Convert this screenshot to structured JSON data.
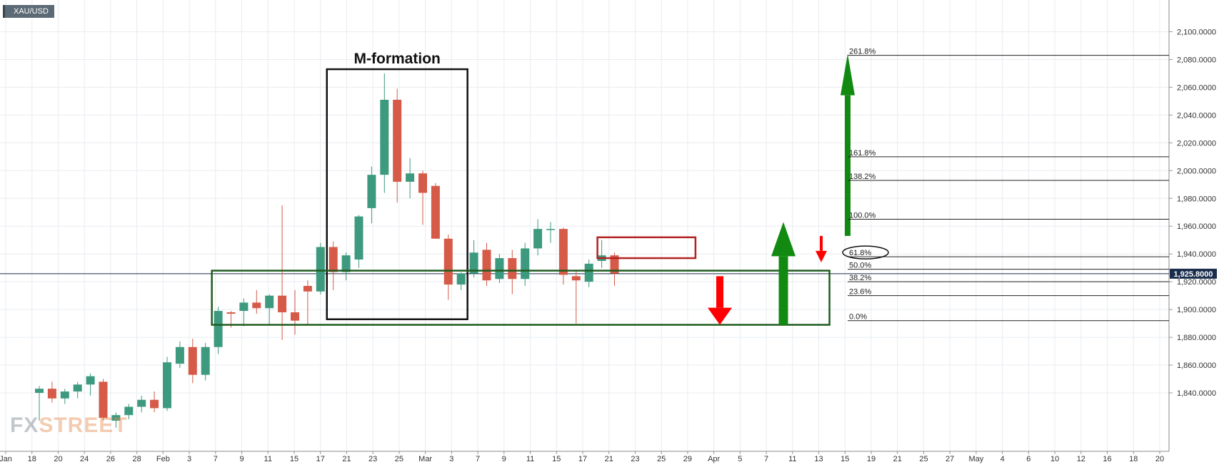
{
  "symbol": "XAU/USD",
  "watermark": {
    "part1": "FX",
    "part2": "STREET"
  },
  "colors": {
    "up": "#3d9a7f",
    "down": "#d65a48",
    "grid": "#e8ecf0",
    "green_annotation": "#128a12",
    "red_annotation": "#ff0000",
    "box_green": "#1f5c1f",
    "box_red": "#b22222",
    "price_tag": "#1a2d4d"
  },
  "chart_data": {
    "type": "candlestick",
    "title": "M-formation",
    "ylim": [
      1820,
      2110
    ],
    "y_ticks": [
      1840,
      1860,
      1880,
      1900,
      1920,
      1940,
      1960,
      1980,
      2000,
      2020,
      2040,
      2060,
      2080,
      2100
    ],
    "y_tick_labels": [
      "1,840.0000",
      "1,860.0000",
      "1,880.0000",
      "1,900.0000",
      "1,920.0000",
      "1,940.0000",
      "1,960.0000",
      "1,980.0000",
      "2,000.0000",
      "2,020.0000",
      "2,040.0000",
      "2,060.0000",
      "2,080.0000",
      "2,100.0000"
    ],
    "x_labels": [
      "Jan",
      "18",
      "20",
      "24",
      "26",
      "28",
      "Feb",
      "3",
      "7",
      "9",
      "11",
      "15",
      "17",
      "21",
      "23",
      "25",
      "Mar",
      "3",
      "7",
      "9",
      "11",
      "15",
      "17",
      "21",
      "23",
      "25",
      "29",
      "Apr",
      "5",
      "7",
      "11",
      "13",
      "15",
      "19",
      "21",
      "25",
      "27",
      "May",
      "4",
      "6",
      "10",
      "12",
      "16",
      "18",
      "20"
    ],
    "current_price": 1925.8,
    "current_price_label": "1,925.8000",
    "candles": [
      {
        "open": 1840,
        "high": 1845,
        "low": 1820,
        "close": 1843
      },
      {
        "open": 1843,
        "high": 1848,
        "low": 1833,
        "close": 1836
      },
      {
        "open": 1836,
        "high": 1843,
        "low": 1832,
        "close": 1841
      },
      {
        "open": 1841,
        "high": 1848,
        "low": 1836,
        "close": 1846
      },
      {
        "open": 1846,
        "high": 1854,
        "low": 1838,
        "close": 1852
      },
      {
        "open": 1848,
        "high": 1850,
        "low": 1820,
        "close": 1822
      },
      {
        "open": 1820,
        "high": 1826,
        "low": 1815,
        "close": 1824
      },
      {
        "open": 1824,
        "high": 1832,
        "low": 1821,
        "close": 1830
      },
      {
        "open": 1830,
        "high": 1838,
        "low": 1826,
        "close": 1835
      },
      {
        "open": 1835,
        "high": 1841,
        "low": 1826,
        "close": 1829
      },
      {
        "open": 1829,
        "high": 1866,
        "low": 1827,
        "close": 1862
      },
      {
        "open": 1861,
        "high": 1877,
        "low": 1858,
        "close": 1873
      },
      {
        "open": 1873,
        "high": 1879,
        "low": 1847,
        "close": 1853
      },
      {
        "open": 1853,
        "high": 1876,
        "low": 1849,
        "close": 1873
      },
      {
        "open": 1873,
        "high": 1902,
        "low": 1868,
        "close": 1899
      },
      {
        "open": 1898,
        "high": 1899,
        "low": 1887,
        "close": 1897
      },
      {
        "open": 1899,
        "high": 1908,
        "low": 1888,
        "close": 1905
      },
      {
        "open": 1905,
        "high": 1914,
        "low": 1897,
        "close": 1901
      },
      {
        "open": 1901,
        "high": 1911,
        "low": 1889,
        "close": 1910
      },
      {
        "open": 1910,
        "high": 1975,
        "low": 1878,
        "close": 1898
      },
      {
        "open": 1898,
        "high": 1914,
        "low": 1882,
        "close": 1892
      },
      {
        "open": 1917,
        "high": 1921,
        "low": 1889,
        "close": 1913
      },
      {
        "open": 1913,
        "high": 1948,
        "low": 1911,
        "close": 1945
      },
      {
        "open": 1945,
        "high": 1949,
        "low": 1914,
        "close": 1927
      },
      {
        "open": 1927,
        "high": 1941,
        "low": 1921,
        "close": 1939
      },
      {
        "open": 1936,
        "high": 1968,
        "low": 1930,
        "close": 1967
      },
      {
        "open": 1973,
        "high": 2003,
        "low": 1962,
        "close": 1997
      },
      {
        "open": 1997,
        "high": 2070,
        "low": 1984,
        "close": 2051
      },
      {
        "open": 2051,
        "high": 2059,
        "low": 1977,
        "close": 1992
      },
      {
        "open": 1992,
        "high": 2009,
        "low": 1980,
        "close": 1998
      },
      {
        "open": 1998,
        "high": 2000,
        "low": 1961,
        "close": 1984
      },
      {
        "open": 1989,
        "high": 1991,
        "low": 1951,
        "close": 1951
      },
      {
        "open": 1951,
        "high": 1954,
        "low": 1907,
        "close": 1918
      },
      {
        "open": 1918,
        "high": 1927,
        "low": 1914,
        "close": 1926
      },
      {
        "open": 1926,
        "high": 1950,
        "low": 1923,
        "close": 1941
      },
      {
        "open": 1943,
        "high": 1948,
        "low": 1917,
        "close": 1921
      },
      {
        "open": 1922,
        "high": 1940,
        "low": 1919,
        "close": 1937
      },
      {
        "open": 1937,
        "high": 1943,
        "low": 1911,
        "close": 1922
      },
      {
        "open": 1922,
        "high": 1948,
        "low": 1917,
        "close": 1944
      },
      {
        "open": 1944,
        "high": 1965,
        "low": 1939,
        "close": 1958
      },
      {
        "open": 1958,
        "high": 1963,
        "low": 1948,
        "close": 1958
      },
      {
        "open": 1958,
        "high": 1959,
        "low": 1918,
        "close": 1925
      },
      {
        "open": 1924,
        "high": 1928,
        "low": 1890,
        "close": 1921
      },
      {
        "open": 1920,
        "high": 1936,
        "low": 1916,
        "close": 1933
      },
      {
        "open": 1935,
        "high": 1950,
        "low": 1930,
        "close": 1939
      },
      {
        "open": 1939,
        "high": 1941,
        "low": 1917,
        "close": 1926
      }
    ],
    "annotations": {
      "m_formation_box": {
        "start": 23,
        "end": 33,
        "top": 2073,
        "bottom": 1893
      },
      "green_range_box": {
        "start": 14,
        "end": 44,
        "top": 1928,
        "bottom": 1889
      },
      "red_resistance_box": {
        "start": 44,
        "end": 51,
        "top": 1952,
        "bottom": 1937
      }
    },
    "fibonacci": [
      {
        "label": "261.8%",
        "price": 2083
      },
      {
        "label": "161.8%",
        "price": 2010
      },
      {
        "label": "138.2%",
        "price": 1993
      },
      {
        "label": "100.0%",
        "price": 1965
      },
      {
        "label": "61.8%",
        "price": 1938
      },
      {
        "label": "50.0%",
        "price": 1929
      },
      {
        "label": "38.2%",
        "price": 1920
      },
      {
        "label": "23.6%",
        "price": 1910
      },
      {
        "label": "0.0%",
        "price": 1892
      }
    ]
  }
}
